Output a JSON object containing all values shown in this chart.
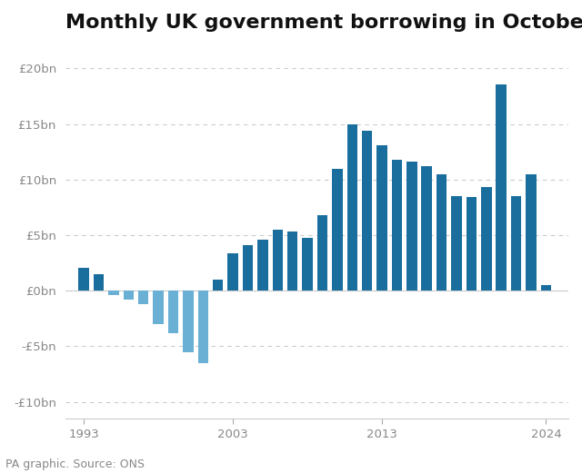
{
  "years": [
    1993,
    1994,
    1995,
    1996,
    1997,
    1998,
    1999,
    2000,
    2001,
    2002,
    2003,
    2004,
    2005,
    2006,
    2007,
    2008,
    2009,
    2010,
    2011,
    2012,
    2013,
    2014,
    2015,
    2016,
    2017,
    2018,
    2019,
    2020,
    2021,
    2022,
    2023,
    2024
  ],
  "values": [
    2.1,
    1.5,
    -0.4,
    -0.8,
    -1.2,
    -3.0,
    -3.8,
    -5.5,
    -6.5,
    1.0,
    3.4,
    4.1,
    4.6,
    5.5,
    5.3,
    4.8,
    6.8,
    11.0,
    15.0,
    14.4,
    13.1,
    11.8,
    11.6,
    11.2,
    10.5,
    8.5,
    8.4,
    9.3,
    18.6,
    8.5,
    10.5,
    0.5
  ],
  "positive_color": "#1a6e9e",
  "negative_color": "#6ab0d4",
  "title": "Monthly UK government borrowing in October",
  "source": "PA graphic. Source: ONS",
  "yticks": [
    -10,
    -5,
    0,
    5,
    10,
    15,
    20
  ],
  "ylim": [
    -11.5,
    22.5
  ],
  "xlim": [
    1991.8,
    2025.5
  ],
  "xtick_years": [
    1993,
    2003,
    2013,
    2024
  ],
  "bar_width": 0.7,
  "background_color": "#ffffff",
  "title_fontsize": 16,
  "axis_fontsize": 9.5,
  "source_fontsize": 9
}
